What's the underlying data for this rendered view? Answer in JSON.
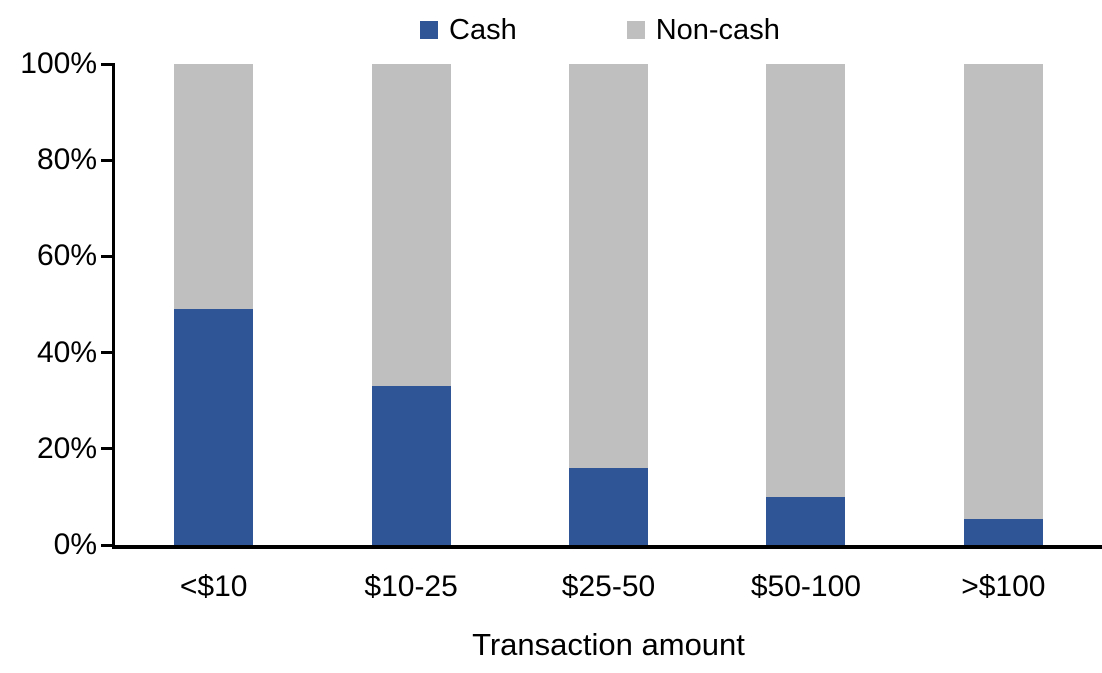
{
  "chart_data": {
    "type": "bar",
    "stacked": true,
    "percent_stacked": true,
    "title": "",
    "xlabel": "Transaction amount",
    "ylabel": "",
    "categories": [
      "<$10",
      "$10-25",
      "$25-50",
      "$50-100",
      ">$100"
    ],
    "series": [
      {
        "name": "Cash",
        "color": "#2F5597",
        "values": [
          49,
          33,
          16,
          10,
          5.5
        ]
      },
      {
        "name": "Non-cash",
        "color": "#BFBFBF",
        "values": [
          51,
          67,
          84,
          90,
          94.5
        ]
      }
    ],
    "yticks": [
      "0%",
      "20%",
      "40%",
      "60%",
      "80%",
      "100%"
    ],
    "ylim": [
      0,
      100
    ],
    "legend_position": "top-center",
    "grid": false,
    "axis_color": "#000000",
    "background_color": "#FFFFFF"
  }
}
